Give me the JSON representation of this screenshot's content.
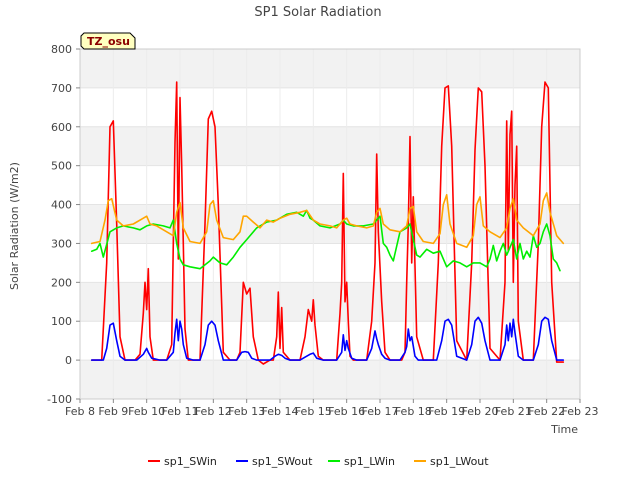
{
  "chart_data": {
    "type": "line",
    "title": "SP1 Solar Radiation",
    "xlabel": "Time",
    "ylabel": "Solar Radiation (W/m2)",
    "site_label": "TZ_osu",
    "x_ticks": [
      "Feb 8",
      "Feb 9",
      "Feb 10",
      "Feb 11",
      "Feb 12",
      "Feb 13",
      "Feb 14",
      "Feb 15",
      "Feb 16",
      "Feb 17",
      "Feb 18",
      "Feb 19",
      "Feb 20",
      "Feb 21",
      "Feb 22",
      "Feb 23"
    ],
    "xlim": [
      8,
      23
    ],
    "ylim": [
      -100,
      800
    ],
    "y_ticks": [
      -100,
      0,
      100,
      200,
      300,
      400,
      500,
      600,
      700,
      800
    ],
    "bands": [
      [
        -100,
        0
      ],
      [
        100,
        200
      ],
      [
        300,
        400
      ],
      [
        500,
        600
      ],
      [
        700,
        800
      ]
    ],
    "grid": true,
    "legend_position": "bottom",
    "series": [
      {
        "name": "sp1_SWin",
        "color": "#ff0000",
        "x": [
          8.35,
          8.65,
          8.8,
          8.9,
          9.0,
          9.1,
          9.2,
          9.35,
          9.5,
          9.65,
          9.8,
          9.9,
          9.95,
          10.0,
          10.05,
          10.1,
          10.2,
          10.4,
          10.6,
          10.75,
          10.8,
          10.85,
          10.9,
          10.95,
          11.0,
          11.05,
          11.1,
          11.15,
          11.25,
          11.4,
          11.6,
          11.75,
          11.85,
          11.95,
          12.05,
          12.15,
          12.3,
          12.5,
          12.7,
          12.8,
          12.9,
          13.0,
          13.1,
          13.2,
          13.35,
          13.5,
          13.7,
          13.8,
          13.9,
          13.95,
          14.0,
          14.05,
          14.1,
          14.3,
          14.6,
          14.75,
          14.85,
          14.95,
          15.0,
          15.05,
          15.15,
          15.3,
          15.5,
          15.7,
          15.8,
          15.85,
          15.9,
          15.95,
          16.0,
          16.05,
          16.1,
          16.2,
          16.4,
          16.6,
          16.75,
          16.85,
          16.9,
          16.95,
          17.0,
          17.05,
          17.15,
          17.3,
          17.5,
          17.65,
          17.75,
          17.8,
          17.85,
          17.9,
          17.95,
          18.0,
          18.1,
          18.3,
          18.6,
          18.75,
          18.85,
          18.95,
          19.05,
          19.15,
          19.3,
          19.6,
          19.75,
          19.85,
          19.95,
          20.05,
          20.15,
          20.3,
          20.6,
          20.75,
          20.8,
          20.85,
          20.9,
          20.95,
          21.0,
          21.05,
          21.1,
          21.15,
          21.3,
          21.6,
          21.75,
          21.85,
          21.95,
          22.05,
          22.15,
          22.3,
          22.5
        ],
        "values": [
          0,
          0,
          250,
          600,
          615,
          350,
          60,
          0,
          0,
          0,
          15,
          120,
          200,
          130,
          235,
          60,
          0,
          0,
          0,
          40,
          300,
          560,
          715,
          260,
          675,
          500,
          300,
          80,
          0,
          0,
          0,
          350,
          620,
          640,
          600,
          400,
          20,
          0,
          0,
          20,
          200,
          170,
          185,
          60,
          0,
          -10,
          0,
          0,
          60,
          175,
          30,
          135,
          20,
          0,
          0,
          60,
          130,
          100,
          155,
          90,
          10,
          0,
          0,
          0,
          120,
          200,
          480,
          150,
          200,
          100,
          10,
          0,
          0,
          0,
          100,
          250,
          530,
          330,
          240,
          150,
          20,
          0,
          0,
          0,
          20,
          200,
          350,
          575,
          250,
          420,
          60,
          0,
          0,
          250,
          550,
          700,
          705,
          550,
          50,
          0,
          250,
          540,
          700,
          690,
          500,
          30,
          0,
          200,
          615,
          280,
          580,
          640,
          200,
          450,
          550,
          100,
          0,
          0,
          300,
          600,
          715,
          700,
          200,
          -5,
          -5
        ]
      },
      {
        "name": "sp1_SWout",
        "color": "#0000ff",
        "x": [
          8.35,
          8.7,
          8.8,
          8.9,
          9.0,
          9.1,
          9.2,
          9.35,
          9.5,
          9.7,
          9.9,
          10.0,
          10.05,
          10.15,
          10.4,
          10.6,
          10.8,
          10.85,
          10.9,
          10.95,
          11.0,
          11.05,
          11.1,
          11.2,
          11.4,
          11.6,
          11.75,
          11.85,
          11.95,
          12.05,
          12.15,
          12.3,
          12.5,
          12.7,
          12.85,
          12.95,
          13.05,
          13.15,
          13.3,
          13.5,
          13.7,
          13.85,
          13.95,
          14.05,
          14.15,
          14.3,
          14.6,
          14.8,
          14.9,
          15.0,
          15.1,
          15.3,
          15.5,
          15.7,
          15.85,
          15.9,
          15.95,
          16.0,
          16.05,
          16.15,
          16.3,
          16.6,
          16.75,
          16.85,
          16.9,
          16.95,
          17.05,
          17.15,
          17.3,
          17.6,
          17.75,
          17.8,
          17.85,
          17.9,
          17.95,
          18.05,
          18.15,
          18.4,
          18.7,
          18.85,
          18.95,
          19.05,
          19.15,
          19.3,
          19.6,
          19.75,
          19.85,
          19.95,
          20.05,
          20.15,
          20.3,
          20.6,
          20.75,
          20.8,
          20.85,
          20.9,
          20.95,
          21.0,
          21.05,
          21.15,
          21.3,
          21.6,
          21.75,
          21.85,
          21.95,
          22.05,
          22.15,
          22.3,
          22.5
        ],
        "values": [
          0,
          0,
          30,
          90,
          95,
          50,
          10,
          0,
          0,
          0,
          15,
          30,
          20,
          5,
          0,
          0,
          20,
          70,
          105,
          50,
          100,
          80,
          40,
          5,
          0,
          0,
          40,
          90,
          100,
          90,
          50,
          0,
          0,
          0,
          20,
          22,
          20,
          5,
          0,
          0,
          0,
          10,
          15,
          12,
          5,
          0,
          0,
          10,
          15,
          18,
          5,
          0,
          0,
          0,
          20,
          65,
          25,
          50,
          30,
          5,
          0,
          0,
          30,
          75,
          55,
          40,
          15,
          5,
          0,
          0,
          20,
          35,
          80,
          50,
          60,
          10,
          0,
          0,
          0,
          50,
          100,
          105,
          90,
          10,
          0,
          40,
          100,
          110,
          95,
          50,
          0,
          0,
          40,
          90,
          50,
          95,
          60,
          105,
          70,
          10,
          0,
          0,
          40,
          100,
          110,
          105,
          50,
          0,
          0
        ]
      },
      {
        "name": "sp1_LWin",
        "color": "#00ee00",
        "x": [
          8.35,
          8.5,
          8.6,
          8.7,
          8.9,
          9.1,
          9.3,
          9.6,
          9.8,
          10.0,
          10.2,
          10.5,
          10.7,
          10.8,
          10.9,
          11.0,
          11.1,
          11.3,
          11.6,
          11.9,
          12.0,
          12.2,
          12.4,
          12.6,
          12.8,
          13.0,
          13.3,
          13.6,
          13.9,
          14.2,
          14.5,
          14.7,
          14.8,
          14.9,
          15.0,
          15.2,
          15.5,
          15.8,
          15.9,
          16.0,
          16.2,
          16.5,
          16.8,
          16.9,
          17.0,
          17.1,
          17.2,
          17.3,
          17.4,
          17.6,
          17.8,
          17.9,
          18.0,
          18.1,
          18.2,
          18.4,
          18.6,
          18.8,
          19.0,
          19.2,
          19.4,
          19.6,
          19.8,
          20.0,
          20.2,
          20.3,
          20.4,
          20.5,
          20.6,
          20.7,
          20.8,
          20.9,
          21.0,
          21.1,
          21.2,
          21.3,
          21.4,
          21.5,
          21.6,
          21.7,
          21.8,
          21.9,
          22.0,
          22.1,
          22.2,
          22.3,
          22.4
        ],
        "values": [
          280,
          285,
          300,
          265,
          330,
          340,
          345,
          340,
          335,
          345,
          350,
          345,
          340,
          360,
          300,
          260,
          245,
          240,
          235,
          255,
          265,
          250,
          245,
          265,
          290,
          310,
          340,
          355,
          360,
          375,
          380,
          370,
          385,
          365,
          360,
          345,
          340,
          350,
          360,
          350,
          345,
          345,
          350,
          360,
          370,
          300,
          290,
          270,
          255,
          330,
          340,
          350,
          310,
          270,
          265,
          285,
          275,
          280,
          240,
          255,
          250,
          240,
          250,
          250,
          240,
          260,
          295,
          255,
          280,
          300,
          270,
          290,
          310,
          260,
          300,
          260,
          280,
          265,
          320,
          290,
          300,
          330,
          350,
          320,
          260,
          250,
          230
        ]
      },
      {
        "name": "sp1_LWout",
        "color": "#ffa500",
        "x": [
          8.35,
          8.6,
          8.75,
          8.85,
          8.95,
          9.1,
          9.3,
          9.6,
          9.9,
          10.0,
          10.1,
          10.3,
          10.6,
          10.8,
          10.9,
          11.0,
          11.1,
          11.3,
          11.6,
          11.8,
          11.9,
          12.0,
          12.1,
          12.3,
          12.6,
          12.8,
          12.9,
          13.0,
          13.2,
          13.4,
          13.6,
          13.8,
          14.0,
          14.3,
          14.6,
          14.8,
          15.0,
          15.2,
          15.5,
          15.7,
          15.9,
          16.0,
          16.1,
          16.3,
          16.6,
          16.8,
          16.9,
          17.0,
          17.1,
          17.3,
          17.6,
          17.8,
          17.9,
          18.0,
          18.1,
          18.3,
          18.6,
          18.8,
          18.9,
          19.0,
          19.1,
          19.3,
          19.6,
          19.8,
          19.9,
          20.0,
          20.1,
          20.3,
          20.6,
          20.8,
          20.9,
          21.0,
          21.1,
          21.3,
          21.6,
          21.8,
          21.9,
          22.0,
          22.1,
          22.3,
          22.5
        ],
        "values": [
          300,
          305,
          360,
          410,
          415,
          360,
          345,
          350,
          365,
          370,
          350,
          345,
          330,
          320,
          380,
          405,
          340,
          305,
          300,
          330,
          400,
          410,
          360,
          315,
          310,
          330,
          370,
          370,
          355,
          340,
          360,
          355,
          365,
          375,
          380,
          385,
          360,
          350,
          345,
          340,
          360,
          365,
          350,
          345,
          340,
          345,
          380,
          390,
          350,
          335,
          330,
          345,
          390,
          395,
          330,
          305,
          300,
          325,
          400,
          425,
          350,
          300,
          290,
          320,
          400,
          420,
          345,
          330,
          315,
          340,
          390,
          415,
          360,
          340,
          320,
          350,
          410,
          430,
          380,
          320,
          300
        ]
      }
    ]
  }
}
